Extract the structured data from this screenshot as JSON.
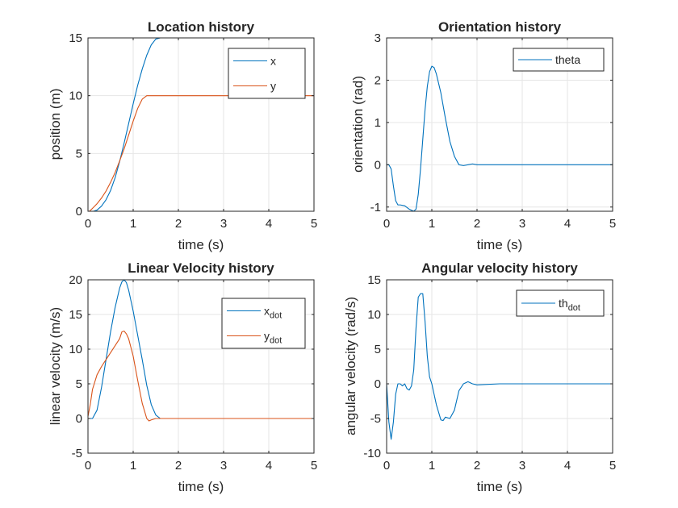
{
  "figure": {
    "background": "#ffffff"
  },
  "colors": {
    "series1": "#0072BD",
    "series2": "#D95319",
    "grid": "#e6e6e6",
    "axis": "#262626"
  },
  "chart_data": [
    {
      "type": "line",
      "title": "Location history",
      "xlabel": "time (s)",
      "ylabel": "position (m)",
      "xlim": [
        0,
        5
      ],
      "ylim": [
        0,
        15
      ],
      "xticks": [
        0,
        1,
        2,
        3,
        4,
        5
      ],
      "yticks": [
        0,
        5,
        10,
        15
      ],
      "grid": true,
      "legend": "top-right",
      "series": [
        {
          "name": "x",
          "color": "#0072BD",
          "x": [
            0.12,
            0.2,
            0.3,
            0.4,
            0.5,
            0.6,
            0.7,
            0.8,
            0.9,
            1.0,
            1.1,
            1.2,
            1.3,
            1.4,
            1.5,
            1.6,
            2.0,
            3.0,
            4.0,
            5.0
          ],
          "y": [
            0,
            0.1,
            0.45,
            1.0,
            1.8,
            2.9,
            4.3,
            5.9,
            7.6,
            9.3,
            10.9,
            12.3,
            13.5,
            14.4,
            14.9,
            15.0,
            15.0,
            15.0,
            15.0,
            15.0
          ]
        },
        {
          "name": "y",
          "color": "#D95319",
          "x": [
            0.03,
            0.1,
            0.2,
            0.3,
            0.4,
            0.5,
            0.6,
            0.7,
            0.8,
            0.9,
            1.0,
            1.1,
            1.2,
            1.3,
            1.4,
            1.5,
            2.0,
            3.0,
            4.0,
            5.0
          ],
          "y": [
            0,
            0.25,
            0.65,
            1.15,
            1.75,
            2.5,
            3.35,
            4.35,
            5.4,
            6.6,
            7.8,
            8.9,
            9.7,
            10.0,
            10.0,
            10.0,
            10.0,
            10.0,
            10.0,
            10.0
          ]
        }
      ]
    },
    {
      "type": "line",
      "title": "Orientation history",
      "xlabel": "time (s)",
      "ylabel": "orientation (rad)",
      "xlim": [
        0,
        5
      ],
      "ylim": [
        -1.1,
        3
      ],
      "xticks": [
        0,
        1,
        2,
        3,
        4,
        5
      ],
      "yticks": [
        -1,
        0,
        1,
        2,
        3
      ],
      "grid": true,
      "legend": "top-right",
      "series": [
        {
          "name": "theta",
          "color": "#0072BD",
          "x": [
            0,
            0.05,
            0.1,
            0.15,
            0.2,
            0.25,
            0.3,
            0.4,
            0.5,
            0.6,
            0.65,
            0.7,
            0.75,
            0.8,
            0.85,
            0.9,
            0.95,
            1.0,
            1.05,
            1.1,
            1.2,
            1.3,
            1.4,
            1.5,
            1.6,
            1.7,
            1.8,
            1.9,
            2.0,
            2.5,
            3.0,
            4.0,
            5.0
          ],
          "y": [
            0,
            0,
            -0.1,
            -0.5,
            -0.85,
            -0.95,
            -0.95,
            -0.97,
            -1.05,
            -1.1,
            -1.05,
            -0.7,
            -0.1,
            0.6,
            1.3,
            1.85,
            2.2,
            2.33,
            2.3,
            2.15,
            1.7,
            1.1,
            0.55,
            0.2,
            0.0,
            -0.02,
            0.0,
            0.02,
            0.0,
            0.0,
            0.0,
            0.0,
            0.0
          ]
        }
      ]
    },
    {
      "type": "line",
      "title": "Linear Velocity history",
      "xlabel": "time (s)",
      "ylabel": "linear velocity (m/s)",
      "xlim": [
        0,
        5
      ],
      "ylim": [
        -5,
        20
      ],
      "xticks": [
        0,
        1,
        2,
        3,
        4,
        5
      ],
      "yticks": [
        -5,
        0,
        5,
        10,
        15,
        20
      ],
      "grid": true,
      "legend": "top-right",
      "series": [
        {
          "name": "x",
          "name_sub": "dot",
          "color": "#0072BD",
          "x": [
            0,
            0.1,
            0.2,
            0.3,
            0.4,
            0.5,
            0.6,
            0.7,
            0.75,
            0.8,
            0.85,
            0.9,
            1.0,
            1.1,
            1.2,
            1.3,
            1.4,
            1.5,
            1.6,
            1.7,
            2.0,
            3.0,
            4.0,
            5.0
          ],
          "y": [
            0,
            0,
            1.2,
            4.5,
            8.5,
            12.5,
            16.0,
            18.8,
            19.7,
            20.0,
            19.6,
            18.5,
            15.5,
            12.0,
            8.5,
            4.8,
            2.0,
            0.5,
            0.0,
            0.0,
            0.0,
            0.0,
            0.0,
            0.0
          ]
        },
        {
          "name": "y",
          "name_sub": "dot",
          "color": "#D95319",
          "x": [
            0,
            0.05,
            0.1,
            0.2,
            0.3,
            0.4,
            0.5,
            0.6,
            0.7,
            0.75,
            0.8,
            0.85,
            0.9,
            1.0,
            1.1,
            1.2,
            1.3,
            1.35,
            1.4,
            1.5,
            1.6,
            2.0,
            3.0,
            4.0,
            5.0
          ],
          "y": [
            0.3,
            2.0,
            4.2,
            6.3,
            7.5,
            8.5,
            9.5,
            10.5,
            11.5,
            12.5,
            12.6,
            12.2,
            11.5,
            9.0,
            5.5,
            2.2,
            0.0,
            -0.35,
            -0.2,
            0.0,
            0.0,
            0.0,
            0.0,
            0.0,
            0.0
          ]
        }
      ]
    },
    {
      "type": "line",
      "title": "Angular velocity history",
      "xlabel": "time (s)",
      "ylabel": "angular velocity (rad/s)",
      "xlim": [
        0,
        5
      ],
      "ylim": [
        -10,
        15
      ],
      "xticks": [
        0,
        1,
        2,
        3,
        4,
        5
      ],
      "yticks": [
        -10,
        -5,
        0,
        5,
        10,
        15
      ],
      "grid": true,
      "legend": "top-right",
      "series": [
        {
          "name": "th",
          "name_sub": "dot",
          "color": "#0072BD",
          "x": [
            0,
            0.05,
            0.1,
            0.15,
            0.2,
            0.25,
            0.3,
            0.35,
            0.4,
            0.45,
            0.5,
            0.55,
            0.6,
            0.65,
            0.7,
            0.75,
            0.8,
            0.85,
            0.9,
            0.95,
            1.0,
            1.1,
            1.2,
            1.25,
            1.3,
            1.4,
            1.5,
            1.6,
            1.7,
            1.8,
            1.9,
            2.0,
            2.5,
            3.0,
            4.0,
            5.0
          ],
          "y": [
            0,
            -5.5,
            -8.0,
            -5.5,
            -1.5,
            0.0,
            0.0,
            -0.3,
            0.0,
            -0.7,
            -0.9,
            -0.3,
            2.0,
            8.0,
            12.5,
            13.0,
            13.0,
            9.0,
            4.0,
            1.0,
            0.0,
            -3.0,
            -5.2,
            -5.3,
            -4.8,
            -5.0,
            -3.8,
            -1.0,
            0.0,
            0.3,
            0.0,
            -0.15,
            0.0,
            0.0,
            0.0,
            0.0
          ]
        }
      ]
    }
  ]
}
